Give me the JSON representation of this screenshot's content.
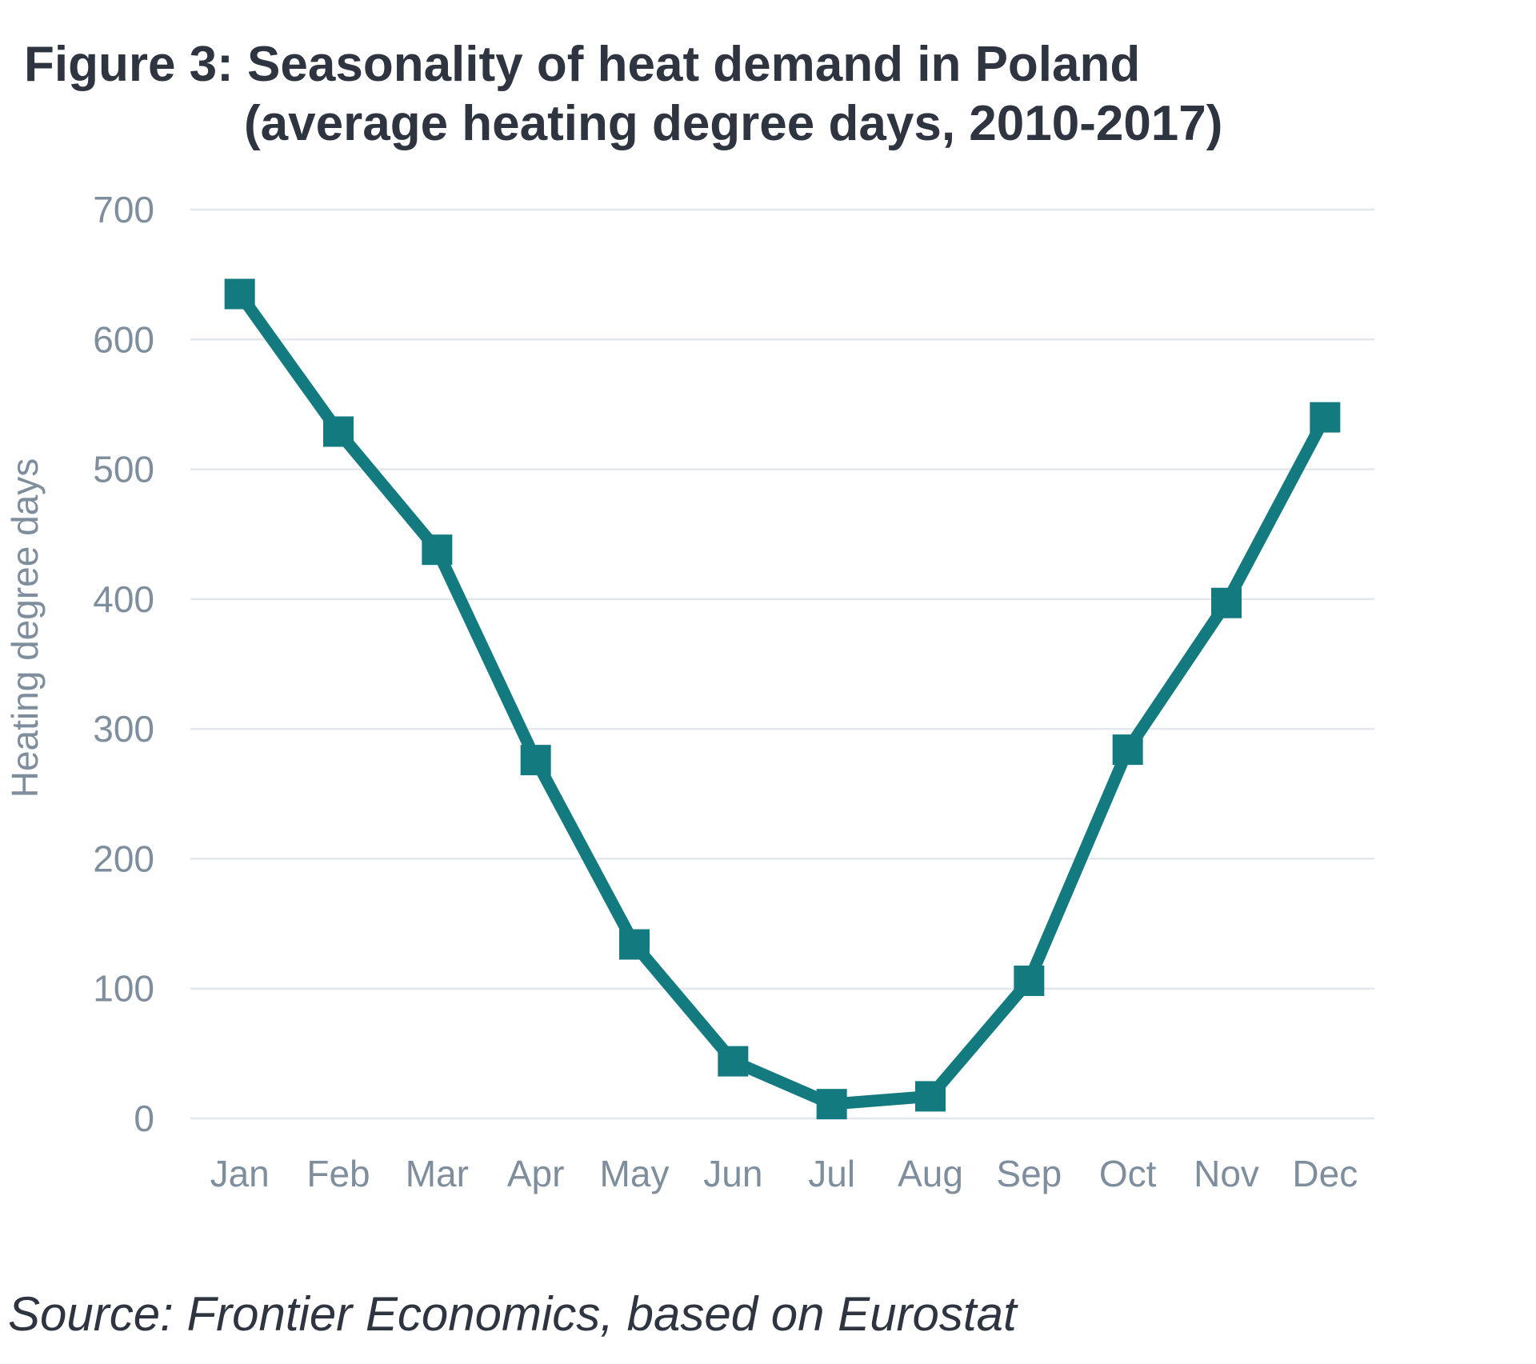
{
  "chart_data": {
    "type": "line",
    "title_line1": "Figure 3: Seasonality of heat demand in Poland",
    "title_line2": "(average heating degree days, 2010-2017)",
    "xlabel": "",
    "ylabel": "Heating degree days",
    "ylim": [
      0,
      700
    ],
    "yticks": [
      "0",
      "100",
      "200",
      "300",
      "400",
      "500",
      "600",
      "700"
    ],
    "ytick_values": [
      0,
      100,
      200,
      300,
      400,
      500,
      600,
      700
    ],
    "categories": [
      "Jan",
      "Feb",
      "Mar",
      "Apr",
      "May",
      "Jun",
      "Jul",
      "Aug",
      "Sep",
      "Oct",
      "Nov",
      "Dec"
    ],
    "series": [
      {
        "values": [
          635,
          529,
          438,
          276,
          134,
          44,
          11,
          17,
          106,
          284,
          397,
          540
        ],
        "color": "#137a80",
        "marker": "square"
      }
    ],
    "grid": true,
    "gridline_color": "#e3e6ea"
  },
  "source": "Source: Frontier Economics, based on Eurostat"
}
